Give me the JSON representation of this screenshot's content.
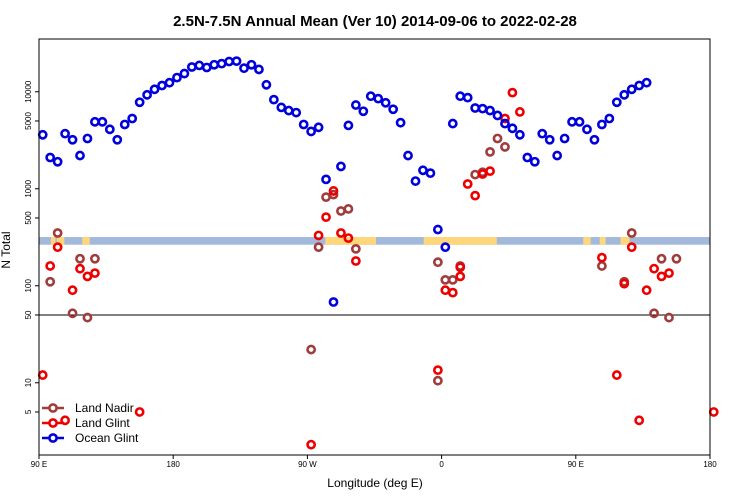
{
  "chart_data": {
    "type": "scatter",
    "title": "2.5N-7.5N Annual Mean (Ver 10)   2014-09-06 to 2022-02-28",
    "xlabel": "Longitude (deg E)",
    "ylabel": "N Total",
    "x_axis_start_lon": 90,
    "x_axis_span_deg": 450,
    "xlim": [
      90,
      540
    ],
    "yscale": "log",
    "ylim": [
      1.8,
      35000
    ],
    "x_ticks": [
      {
        "value": 90,
        "label": "90 E"
      },
      {
        "value": 180,
        "label": "180"
      },
      {
        "value": 270,
        "label": "90 W"
      },
      {
        "value": 360,
        "label": "0"
      },
      {
        "value": 450,
        "label": "90 E"
      },
      {
        "value": 540,
        "label": "180"
      }
    ],
    "y_ticks": [
      {
        "value": 5,
        "label": "5"
      },
      {
        "value": 10,
        "label": "10"
      },
      {
        "value": 50,
        "label": "50"
      },
      {
        "value": 100,
        "label": "100"
      },
      {
        "value": 500,
        "label": "500"
      },
      {
        "value": 1000,
        "label": "1000"
      },
      {
        "value": 5000,
        "label": "5000"
      },
      {
        "value": 10000,
        "label": "10000"
      }
    ],
    "reference_line_y": 50,
    "land_band": {
      "y_range": [
        265,
        318
      ],
      "color": "#a3b9dc",
      "land_color": "#ffd67a"
    },
    "land_segments": [
      [
        98,
        101
      ],
      [
        102,
        107
      ],
      [
        119,
        124
      ],
      [
        282,
        316
      ],
      [
        348,
        397
      ],
      [
        455,
        460
      ],
      [
        466,
        470
      ],
      [
        480,
        486
      ]
    ],
    "legend": {
      "position": "bottom-left"
    },
    "series": [
      {
        "name": "Land Nadir",
        "color": "#a03c3c",
        "points": [
          [
            97.5,
            110
          ],
          [
            102.5,
            350
          ],
          [
            112.5,
            52
          ],
          [
            117.5,
            190
          ],
          [
            122.5,
            47
          ],
          [
            127.5,
            190
          ],
          [
            272.5,
            22
          ],
          [
            277.5,
            250
          ],
          [
            282.5,
            820
          ],
          [
            287.5,
            870
          ],
          [
            292.5,
            590
          ],
          [
            297.5,
            620
          ],
          [
            302.5,
            240
          ],
          [
            357.5,
            10.5
          ],
          [
            357.5,
            175
          ],
          [
            362.5,
            115
          ],
          [
            367.5,
            115
          ],
          [
            372.5,
            160
          ],
          [
            382.5,
            1400
          ],
          [
            387.5,
            1480
          ],
          [
            392.5,
            2400
          ],
          [
            397.5,
            3300
          ],
          [
            402.5,
            2700
          ],
          [
            467.5,
            160
          ],
          [
            482.5,
            110
          ],
          [
            487.5,
            350
          ],
          [
            502.5,
            52
          ],
          [
            507.5,
            190
          ],
          [
            512.5,
            47
          ],
          [
            517.5,
            190
          ]
        ]
      },
      {
        "name": "Land Glint",
        "color": "#ee0000",
        "points": [
          [
            92.5,
            12
          ],
          [
            97.5,
            160
          ],
          [
            102.5,
            250
          ],
          [
            107.5,
            4.1
          ],
          [
            112.5,
            90
          ],
          [
            117.5,
            150
          ],
          [
            122.5,
            125
          ],
          [
            127.5,
            135
          ],
          [
            157.5,
            5
          ],
          [
            272.5,
            2.3
          ],
          [
            277.5,
            330
          ],
          [
            282.5,
            510
          ],
          [
            287.5,
            950
          ],
          [
            292.5,
            350
          ],
          [
            297.5,
            310
          ],
          [
            302.5,
            180
          ],
          [
            357.5,
            13.5
          ],
          [
            362.5,
            90
          ],
          [
            367.5,
            85
          ],
          [
            372.5,
            125
          ],
          [
            372.5,
            155
          ],
          [
            377.5,
            1120
          ],
          [
            382.5,
            850
          ],
          [
            387.5,
            1420
          ],
          [
            392.5,
            1520
          ],
          [
            402.5,
            5300
          ],
          [
            407.5,
            9800
          ],
          [
            412.5,
            6200
          ],
          [
            467.5,
            195
          ],
          [
            477.5,
            12
          ],
          [
            482.5,
            105
          ],
          [
            487.5,
            250
          ],
          [
            492.5,
            4.1
          ],
          [
            497.5,
            90
          ],
          [
            502.5,
            150
          ],
          [
            507.5,
            125
          ],
          [
            512.5,
            135
          ],
          [
            542.5,
            5
          ]
        ]
      },
      {
        "name": "Ocean Glint",
        "color": "#0000dd",
        "points": [
          [
            92.5,
            3600
          ],
          [
            97.5,
            2100
          ],
          [
            102.5,
            1900
          ],
          [
            107.5,
            3700
          ],
          [
            112.5,
            3200
          ],
          [
            117.5,
            2200
          ],
          [
            122.5,
            3300
          ],
          [
            127.5,
            4900
          ],
          [
            132.5,
            4900
          ],
          [
            137.5,
            4100
          ],
          [
            142.5,
            3200
          ],
          [
            147.5,
            4600
          ],
          [
            152.5,
            5300
          ],
          [
            157.5,
            7800
          ],
          [
            162.5,
            9300
          ],
          [
            167.5,
            10600
          ],
          [
            172.5,
            11600
          ],
          [
            177.5,
            12400
          ],
          [
            182.5,
            14000
          ],
          [
            187.5,
            15400
          ],
          [
            192.5,
            18000
          ],
          [
            197.5,
            18700
          ],
          [
            202.5,
            17800
          ],
          [
            207.5,
            19000
          ],
          [
            212.5,
            19500
          ],
          [
            217.5,
            20500
          ],
          [
            222.5,
            20700
          ],
          [
            227.5,
            17500
          ],
          [
            232.5,
            19000
          ],
          [
            237.5,
            17000
          ],
          [
            242.5,
            11800
          ],
          [
            247.5,
            8300
          ],
          [
            252.5,
            6900
          ],
          [
            257.5,
            6400
          ],
          [
            262.5,
            6100
          ],
          [
            267.5,
            4600
          ],
          [
            272.5,
            3900
          ],
          [
            277.5,
            4300
          ],
          [
            282.5,
            1250
          ],
          [
            287.5,
            68
          ],
          [
            292.5,
            1700
          ],
          [
            297.5,
            4500
          ],
          [
            302.5,
            7300
          ],
          [
            307.5,
            6300
          ],
          [
            312.5,
            9000
          ],
          [
            317.5,
            8500
          ],
          [
            322.5,
            7700
          ],
          [
            327.5,
            6600
          ],
          [
            332.5,
            4800
          ],
          [
            337.5,
            2200
          ],
          [
            342.5,
            1200
          ],
          [
            347.5,
            1550
          ],
          [
            352.5,
            1450
          ],
          [
            357.5,
            380
          ],
          [
            362.5,
            250
          ],
          [
            367.5,
            4700
          ],
          [
            372.5,
            9000
          ],
          [
            377.5,
            8700
          ],
          [
            382.5,
            6800
          ],
          [
            387.5,
            6700
          ],
          [
            392.5,
            6400
          ],
          [
            397.5,
            5700
          ],
          [
            402.5,
            4700
          ],
          [
            407.5,
            4200
          ],
          [
            412.5,
            3600
          ],
          [
            417.5,
            2100
          ],
          [
            422.5,
            1900
          ],
          [
            427.5,
            3700
          ],
          [
            432.5,
            3200
          ],
          [
            437.5,
            2200
          ],
          [
            442.5,
            3300
          ],
          [
            447.5,
            4900
          ],
          [
            452.5,
            4900
          ],
          [
            457.5,
            4100
          ],
          [
            462.5,
            3200
          ],
          [
            467.5,
            4600
          ],
          [
            472.5,
            5300
          ],
          [
            477.5,
            7800
          ],
          [
            482.5,
            9300
          ],
          [
            487.5,
            10600
          ],
          [
            492.5,
            11600
          ],
          [
            497.5,
            12400
          ]
        ]
      }
    ]
  }
}
